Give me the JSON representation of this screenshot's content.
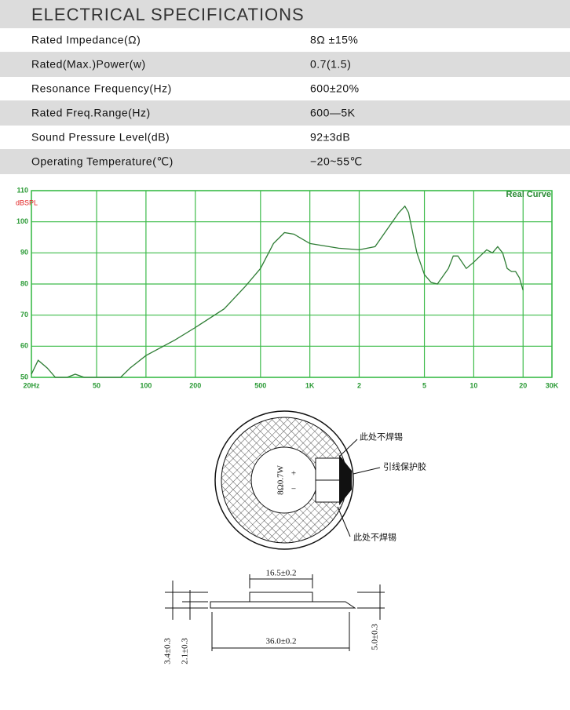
{
  "header": {
    "title": "ELECTRICAL SPECIFICATIONS"
  },
  "table": {
    "rows": [
      [
        "Rated  Impedance(Ω)",
        "8Ω ±15%"
      ],
      [
        "Rated(Max.)Power(w)",
        "0.7(1.5)"
      ],
      [
        "Resonance  Frequency(Hz)",
        "600±20%"
      ],
      [
        "Rated  Freq.Range(Hz)",
        "600—5K"
      ],
      [
        "Sound  Pressure  Level(dB)",
        "92±3dB"
      ],
      [
        "Operating  Temperature(℃)",
        "−20~55℃"
      ]
    ]
  },
  "chart_data": {
    "type": "line",
    "ylabel": "dBSPL",
    "annotation": "Real Curve",
    "x": [
      20,
      22,
      25,
      28,
      33,
      37,
      42,
      50,
      70,
      80,
      100,
      150,
      200,
      300,
      400,
      500,
      600,
      700,
      800,
      1000,
      1500,
      2000,
      2500,
      3000,
      3500,
      3800,
      4000,
      4500,
      5000,
      5500,
      6000,
      7000,
      7500,
      8000,
      9000,
      10000,
      12000,
      13000,
      14000,
      15000,
      16000,
      17000,
      18000,
      19000,
      20000
    ],
    "values": [
      51,
      55.5,
      53,
      50,
      50,
      51,
      50,
      50,
      50,
      53,
      57,
      62,
      66,
      72,
      79,
      85,
      93,
      96.5,
      96,
      93,
      91.5,
      91,
      92,
      98,
      103,
      105,
      103,
      90,
      83,
      80.5,
      80,
      85,
      89,
      89,
      85,
      87,
      91,
      90,
      92,
      90,
      85,
      84,
      84,
      82,
      78
    ],
    "color": "#2f7d35",
    "grid_color": "#3dbb4a",
    "xscale": "log",
    "grid": true,
    "xlim": [
      20,
      30000
    ],
    "ylim": [
      50,
      110
    ],
    "xticks": [
      {
        "value": 20,
        "label": "20Hz"
      },
      50,
      100,
      200,
      500,
      {
        "value": 1000,
        "label": "1K"
      },
      {
        "value": 2000,
        "label": "2"
      },
      {
        "value": 5000,
        "label": "5"
      },
      {
        "value": 10000,
        "label": "10"
      },
      {
        "value": 20000,
        "label": "20"
      },
      {
        "value": 30000,
        "label": "30K"
      }
    ],
    "yticks": [
      50,
      60,
      70,
      80,
      90,
      100,
      110
    ]
  },
  "diagram": {
    "label_top": "此处不焊锡",
    "label_glue": "引线保护胶",
    "label_bottom": "此处不焊锡",
    "marking": "8Ω0.7W",
    "plus": "+",
    "minus": "−",
    "dim_top": "16.5±0.2",
    "dim_width": "36.0±0.2",
    "dim_left_outer": "3.4±0.3",
    "dim_left_inner": "2.1±0.3",
    "dim_right": "5.0±0.3"
  }
}
